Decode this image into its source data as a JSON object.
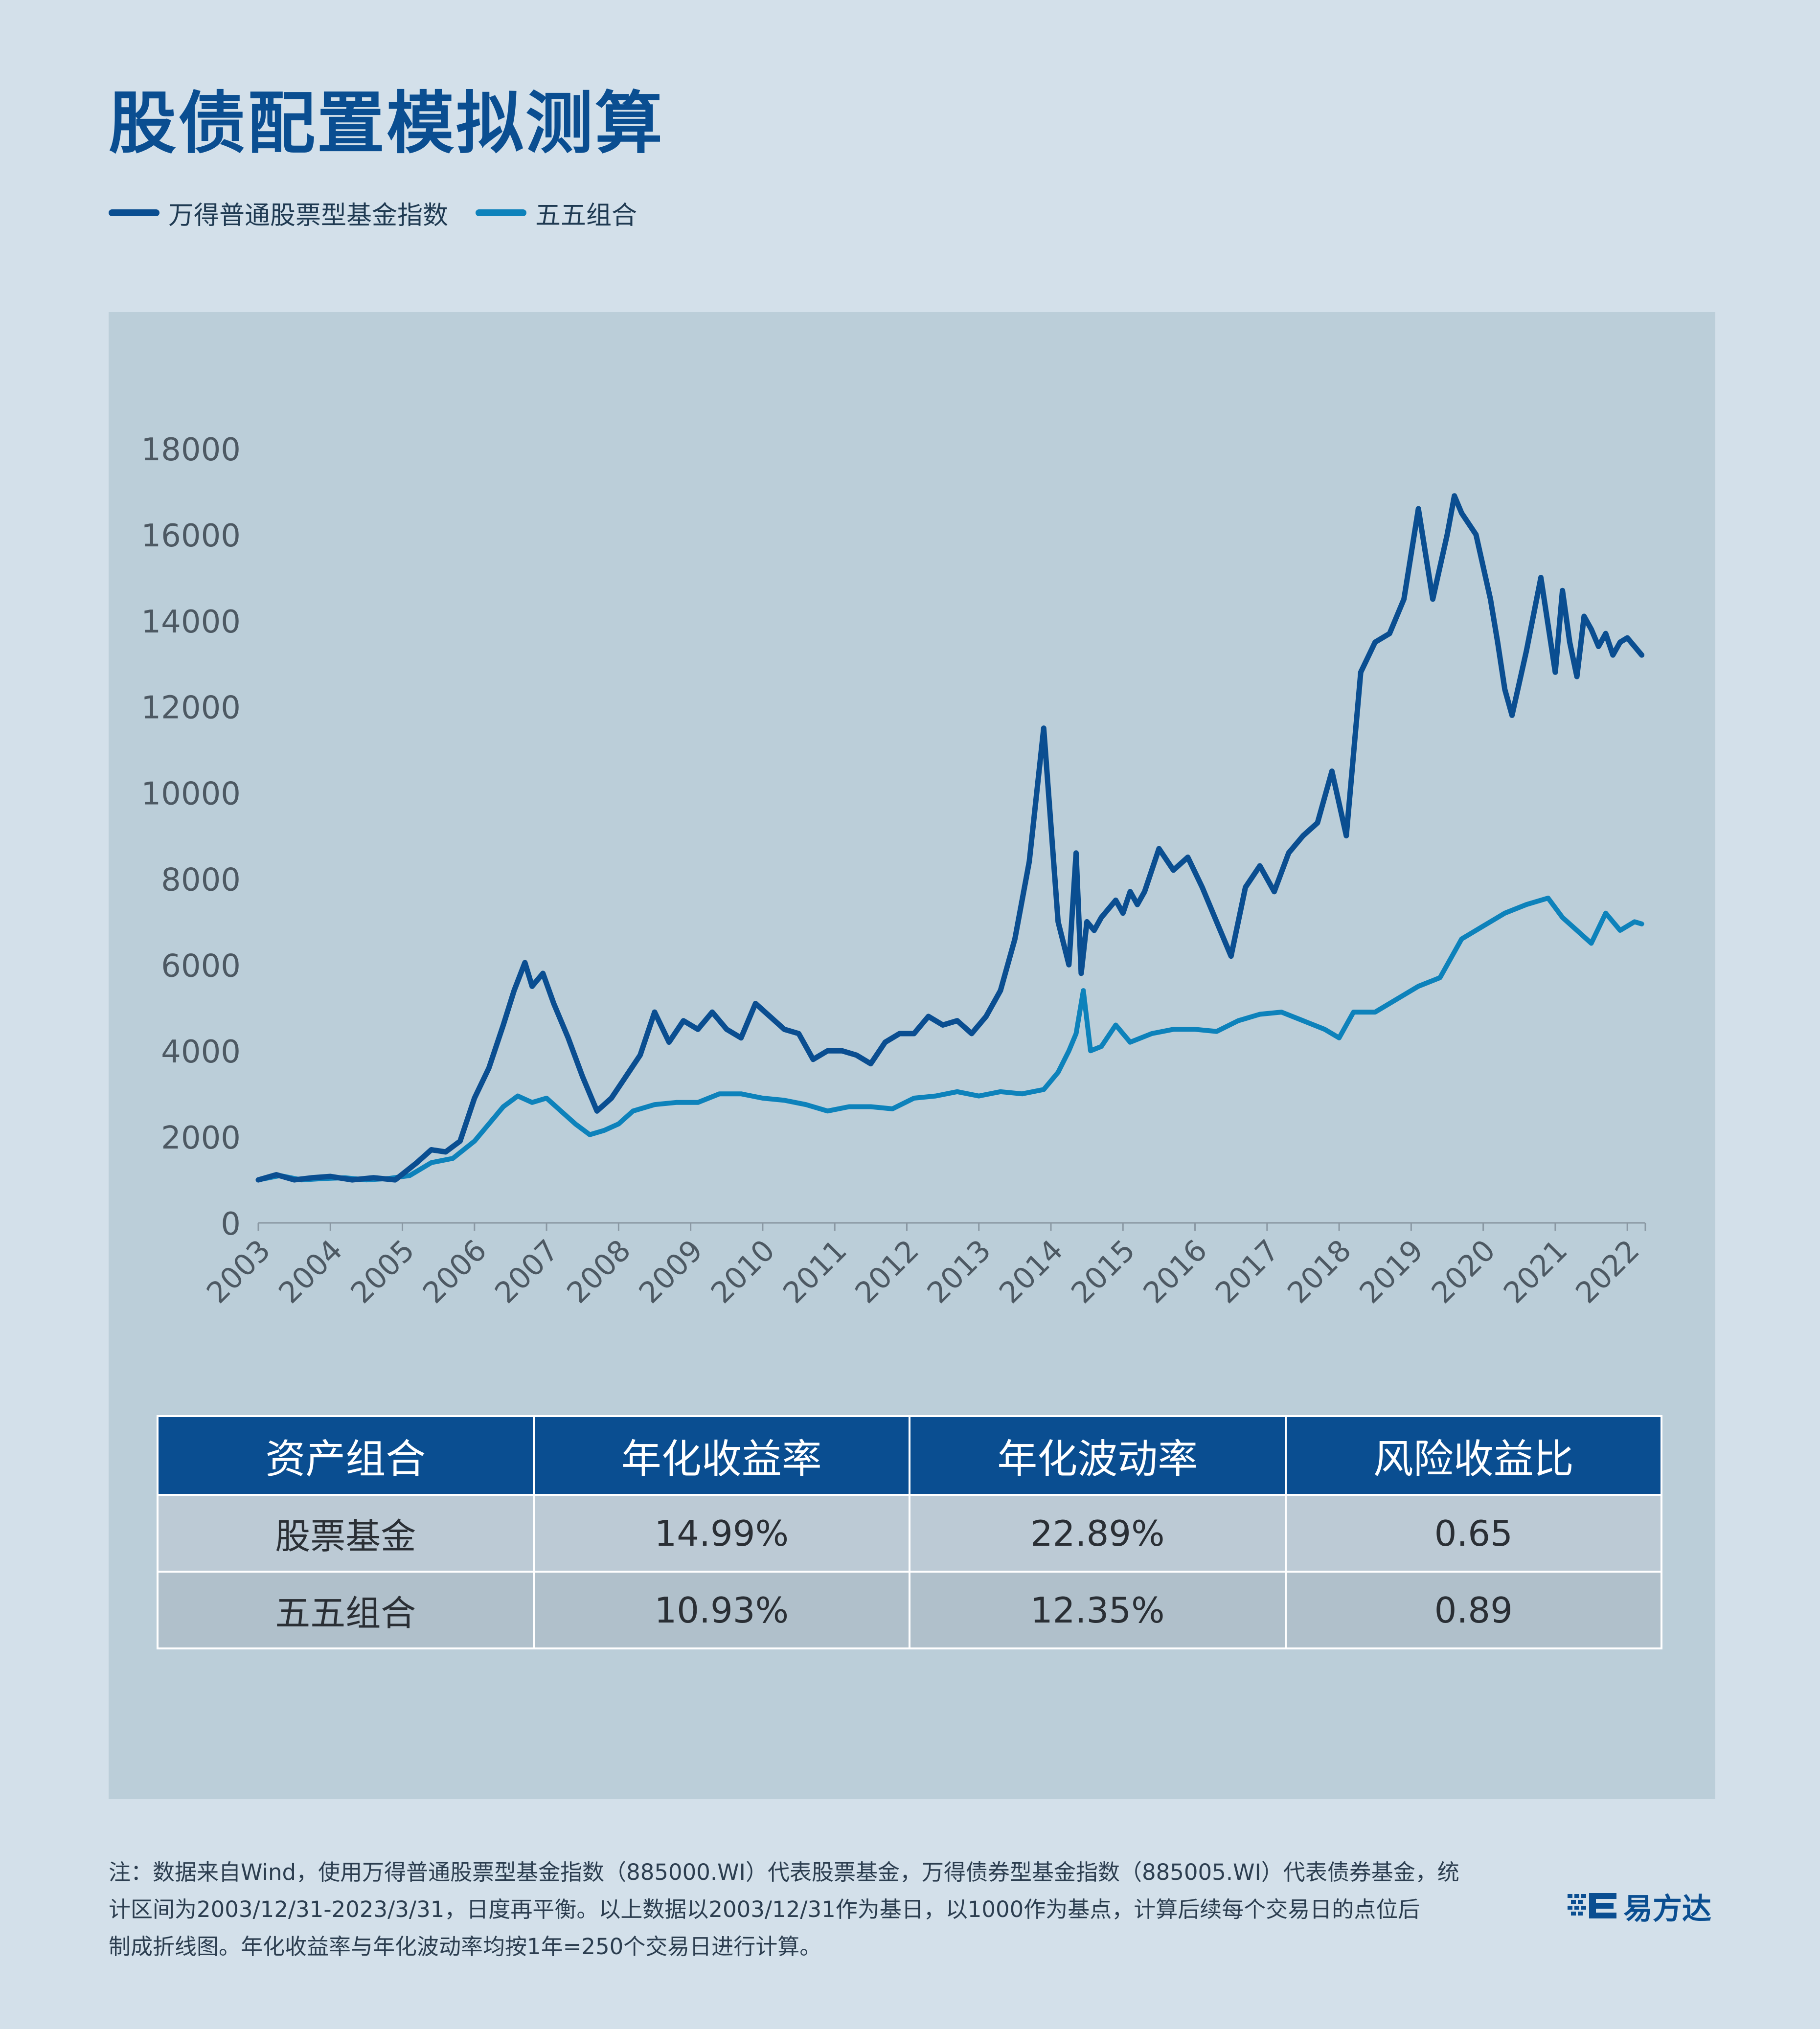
{
  "title": "股债配置模拟测算",
  "colors": {
    "stock": "#0a4e91",
    "mix": "#0d82bb",
    "header": "#0a4e91"
  },
  "legend": {
    "items": [
      {
        "label": "万得普通股票型基金指数"
      },
      {
        "label": "五五组合"
      }
    ]
  },
  "chart_data": {
    "type": "line",
    "title": "股债配置模拟测算",
    "xlabel": "",
    "ylabel": "",
    "ylim": [
      0,
      18000
    ],
    "xlim": [
      2003.0,
      2022.25
    ],
    "yticks": [
      0,
      2000,
      4000,
      6000,
      8000,
      10000,
      12000,
      14000,
      16000,
      18000
    ],
    "xtick_labels": [
      "2003",
      "2004",
      "2005",
      "2006",
      "2007",
      "2008",
      "2009",
      "2010",
      "2011",
      "2012",
      "2013",
      "2014",
      "2015",
      "2016",
      "2017",
      "2018",
      "2019",
      "2020",
      "2021",
      "2022"
    ],
    "grid": false,
    "legend_position": "top-left",
    "series": [
      {
        "name": "万得普通股票型基金指数",
        "color": "#0a4e91",
        "x": [
          2003.0,
          2003.25,
          2003.5,
          2003.75,
          2004.0,
          2004.3,
          2004.6,
          2004.9,
          2005.2,
          2005.4,
          2005.6,
          2005.8,
          2006.0,
          2006.2,
          2006.4,
          2006.55,
          2006.7,
          2006.8,
          2006.95,
          2007.1,
          2007.3,
          2007.5,
          2007.7,
          2007.9,
          2008.1,
          2008.3,
          2008.5,
          2008.7,
          2008.9,
          2009.1,
          2009.3,
          2009.5,
          2009.7,
          2009.9,
          2010.1,
          2010.3,
          2010.5,
          2010.7,
          2010.9,
          2011.1,
          2011.3,
          2011.5,
          2011.7,
          2011.9,
          2012.1,
          2012.3,
          2012.5,
          2012.7,
          2012.9,
          2013.1,
          2013.3,
          2013.5,
          2013.7,
          2013.9,
          2014.1,
          2014.25,
          2014.35,
          2014.42,
          2014.5,
          2014.6,
          2014.7,
          2014.8,
          2014.9,
          2015.0,
          2015.1,
          2015.2,
          2015.3,
          2015.5,
          2015.7,
          2015.9,
          2016.1,
          2016.3,
          2016.5,
          2016.7,
          2016.9,
          2017.1,
          2017.3,
          2017.5,
          2017.7,
          2017.9,
          2018.1,
          2018.3,
          2018.5,
          2018.7,
          2018.9,
          2019.1,
          2019.3,
          2019.5,
          2019.6,
          2019.7,
          2019.9,
          2020.1,
          2020.2,
          2020.3,
          2020.4,
          2020.6,
          2020.8,
          2020.9,
          2021.0,
          2021.1,
          2021.2,
          2021.3,
          2021.4,
          2021.5,
          2021.6,
          2021.7,
          2021.8,
          2021.9,
          2022.0,
          2022.1,
          2022.2
        ],
        "values": [
          1000,
          1120,
          1000,
          1050,
          1080,
          1000,
          1050,
          1000,
          1400,
          1700,
          1650,
          1900,
          2900,
          3600,
          4600,
          5400,
          6050,
          5500,
          5800,
          5100,
          4300,
          3400,
          2600,
          2900,
          3400,
          3900,
          4900,
          4200,
          4700,
          4500,
          4900,
          4500,
          4300,
          5100,
          4800,
          4500,
          4400,
          3800,
          4000,
          4000,
          3900,
          3700,
          4200,
          4400,
          4400,
          4800,
          4600,
          4700,
          4400,
          4800,
          5400,
          6600,
          8400,
          11500,
          7000,
          6000,
          8600,
          5800,
          7000,
          6800,
          7100,
          7300,
          7500,
          7200,
          7700,
          7400,
          7700,
          8700,
          8200,
          8500,
          7800,
          7000,
          6200,
          7800,
          8300,
          7700,
          8600,
          9000,
          9300,
          10500,
          9000,
          12800,
          13500,
          13700,
          14500,
          16600,
          14500,
          16000,
          16900,
          16500,
          16000,
          14500,
          13500,
          12400,
          11800,
          13300,
          15000,
          13900,
          12800,
          14700,
          13500,
          12700,
          14100,
          13800,
          13400,
          13700,
          13200,
          13500,
          13600,
          13400,
          13200
        ],
        "note": "values estimated from chart"
      },
      {
        "name": "五五组合",
        "color": "#0d82bb",
        "x": [
          2003.0,
          2003.3,
          2003.6,
          2003.9,
          2004.2,
          2004.5,
          2004.8,
          2005.1,
          2005.4,
          2005.7,
          2006.0,
          2006.2,
          2006.4,
          2006.6,
          2006.8,
          2007.0,
          2007.2,
          2007.4,
          2007.6,
          2007.8,
          2008.0,
          2008.2,
          2008.5,
          2008.8,
          2009.1,
          2009.4,
          2009.7,
          2010.0,
          2010.3,
          2010.6,
          2010.9,
          2011.2,
          2011.5,
          2011.8,
          2012.1,
          2012.4,
          2012.7,
          2013.0,
          2013.3,
          2013.6,
          2013.9,
          2014.1,
          2014.25,
          2014.35,
          2014.45,
          2014.55,
          2014.7,
          2014.9,
          2015.1,
          2015.4,
          2015.7,
          2016.0,
          2016.3,
          2016.6,
          2016.9,
          2017.2,
          2017.5,
          2017.8,
          2018.0,
          2018.2,
          2018.5,
          2018.8,
          2019.1,
          2019.4,
          2019.7,
          2020.0,
          2020.3,
          2020.6,
          2020.9,
          2021.1,
          2021.3,
          2021.5,
          2021.7,
          2021.9,
          2022.1,
          2022.2
        ],
        "values": [
          1000,
          1100,
          1000,
          1030,
          1050,
          1000,
          1030,
          1100,
          1400,
          1500,
          1900,
          2300,
          2700,
          2950,
          2800,
          2900,
          2600,
          2300,
          2050,
          2150,
          2300,
          2600,
          2750,
          2800,
          2800,
          3000,
          3000,
          2900,
          2850,
          2750,
          2600,
          2700,
          2700,
          2650,
          2900,
          2950,
          3050,
          2950,
          3050,
          3000,
          3100,
          3500,
          4000,
          4400,
          5400,
          4000,
          4100,
          4600,
          4200,
          4400,
          4500,
          4500,
          4450,
          4700,
          4850,
          4900,
          4700,
          4500,
          4300,
          4900,
          4900,
          5200,
          5500,
          5700,
          6600,
          6900,
          7200,
          7400,
          7550,
          7100,
          6800,
          6500,
          7200,
          6800,
          7000,
          6950
        ],
        "note": "values estimated from chart"
      }
    ]
  },
  "table": {
    "headers": [
      "资产组合",
      "年化收益率",
      "年化波动率",
      "风险收益比"
    ],
    "rows": [
      [
        "股票基金",
        "14.99%",
        "22.89%",
        "0.65"
      ],
      [
        "五五组合",
        "10.93%",
        "12.35%",
        "0.89"
      ]
    ]
  },
  "footnote": {
    "line1": "注：数据来自Wind，使用万得普通股票型基金指数（885000.WI）代表股票基金，万得债券型基金指数（885005.WI）代表债券基金，统",
    "line2": "计区间为2003/12/31-2023/3/31，日度再平衡。以上数据以2003/12/31作为基日，以1000作为基点，计算后续每个交易日的点位后",
    "line3": "制成折线图。年化收益率与年化波动率均按1年=250个交易日进行计算。"
  },
  "brand": {
    "name": "易方达",
    "icon": "efunds-logo-icon"
  }
}
